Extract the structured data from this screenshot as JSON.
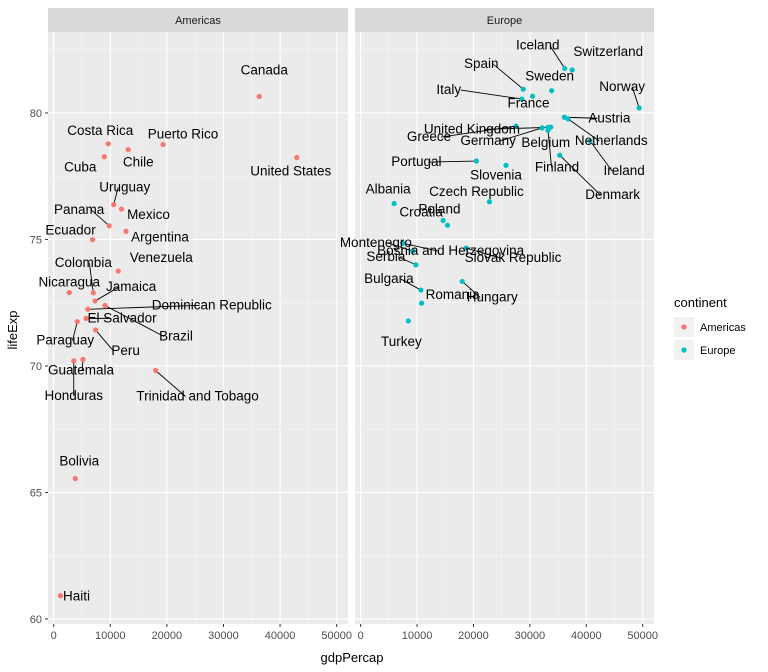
{
  "chart_data": {
    "type": "scatter",
    "xlabel": "gdpPercap",
    "ylabel": "lifeExp",
    "xlim": [
      -1000,
      52000
    ],
    "ylim": [
      59.8,
      83.2
    ],
    "x_ticks": [
      0,
      10000,
      20000,
      30000,
      40000,
      50000
    ],
    "y_ticks": [
      60,
      65,
      70,
      75,
      80
    ],
    "grid": true,
    "legend_position": "right",
    "legend_title": "continent",
    "legend": [
      {
        "name": "Americas",
        "color": "#f8766d"
      },
      {
        "name": "Europe",
        "color": "#00bfc4"
      }
    ],
    "facets": [
      {
        "name": "Americas",
        "color": "#f8766d",
        "points": [
          {
            "label": "Canada",
            "x": 36319,
            "y": 80.65
          },
          {
            "label": "United States",
            "x": 42952,
            "y": 78.24
          },
          {
            "label": "Puerto Rico",
            "x": 19329,
            "y": 78.75
          },
          {
            "label": "Costa Rica",
            "x": 9645,
            "y": 78.78
          },
          {
            "label": "Chile",
            "x": 13172,
            "y": 78.55
          },
          {
            "label": "Cuba",
            "x": 8948,
            "y": 78.27
          },
          {
            "label": "Uruguay",
            "x": 10611,
            "y": 76.38
          },
          {
            "label": "Mexico",
            "x": 11978,
            "y": 76.2
          },
          {
            "label": "Panama",
            "x": 9809,
            "y": 75.54
          },
          {
            "label": "Argentina",
            "x": 12779,
            "y": 75.32
          },
          {
            "label": "Ecuador",
            "x": 6873,
            "y": 74.99
          },
          {
            "label": "Venezuela",
            "x": 11416,
            "y": 73.75
          },
          {
            "label": "Colombia",
            "x": 7007,
            "y": 72.89
          },
          {
            "label": "Nicaragua",
            "x": 2749,
            "y": 72.9
          },
          {
            "label": "Jamaica",
            "x": 7321,
            "y": 72.57
          },
          {
            "label": "Dominican Republic",
            "x": 6025,
            "y": 72.24
          },
          {
            "label": "El Salvador",
            "x": 5728,
            "y": 71.88
          },
          {
            "label": "Paraguay",
            "x": 4173,
            "y": 71.75
          },
          {
            "label": "Brazil",
            "x": 9066,
            "y": 72.39
          },
          {
            "label": "Peru",
            "x": 7409,
            "y": 71.42
          },
          {
            "label": "Guatemala",
            "x": 5186,
            "y": 70.26
          },
          {
            "label": "Honduras",
            "x": 3548,
            "y": 70.2
          },
          {
            "label": "Trinidad and Tobago",
            "x": 18009,
            "y": 69.82
          },
          {
            "label": "Bolivia",
            "x": 3822,
            "y": 65.55
          },
          {
            "label": "Haiti",
            "x": 1202,
            "y": 60.92
          }
        ]
      },
      {
        "name": "Europe",
        "color": "#00bfc4",
        "points": [
          {
            "label": "Iceland",
            "x": 36181,
            "y": 81.76
          },
          {
            "label": "Switzerland",
            "x": 37506,
            "y": 81.7
          },
          {
            "label": "Spain",
            "x": 28821,
            "y": 80.94
          },
          {
            "label": "Sweden",
            "x": 33860,
            "y": 80.88
          },
          {
            "label": "Norway",
            "x": 49357,
            "y": 80.2
          },
          {
            "label": "Italy",
            "x": 28570,
            "y": 80.55
          },
          {
            "label": "France",
            "x": 30470,
            "y": 80.66
          },
          {
            "label": "Austria",
            "x": 36126,
            "y": 79.83
          },
          {
            "label": "Netherlands",
            "x": 36798,
            "y": 79.76
          },
          {
            "label": "United Kingdom",
            "x": 33203,
            "y": 79.43
          },
          {
            "label": "Greece",
            "x": 27538,
            "y": 79.48
          },
          {
            "label": "Belgium",
            "x": 33693,
            "y": 79.44
          },
          {
            "label": "Germany",
            "x": 32170,
            "y": 79.41
          },
          {
            "label": "Finland",
            "x": 33207,
            "y": 79.31
          },
          {
            "label": "Ireland",
            "x": 40676,
            "y": 78.89
          },
          {
            "label": "Portugal",
            "x": 20510,
            "y": 78.1
          },
          {
            "label": "Denmark",
            "x": 35278,
            "y": 78.33
          },
          {
            "label": "Slovenia",
            "x": 25768,
            "y": 77.93
          },
          {
            "label": "Czech Republic",
            "x": 22833,
            "y": 76.49
          },
          {
            "label": "Albania",
            "x": 5937,
            "y": 76.42
          },
          {
            "label": "Croatia",
            "x": 14619,
            "y": 75.75
          },
          {
            "label": "Poland",
            "x": 15389,
            "y": 75.56
          },
          {
            "label": "Montenegro",
            "x": 9254,
            "y": 74.54
          },
          {
            "label": "Slovak Republic",
            "x": 18678,
            "y": 74.66
          },
          {
            "label": "Serbia",
            "x": 9787,
            "y": 74.0
          },
          {
            "label": "Bosnia and Herzegovina",
            "x": 7446,
            "y": 74.85
          },
          {
            "label": "Bulgaria",
            "x": 10681,
            "y": 73.0
          },
          {
            "label": "Hungary",
            "x": 18009,
            "y": 73.34
          },
          {
            "label": "Romania",
            "x": 10808,
            "y": 72.48
          },
          {
            "label": "Turkey",
            "x": 8458,
            "y": 71.78
          }
        ]
      }
    ]
  }
}
